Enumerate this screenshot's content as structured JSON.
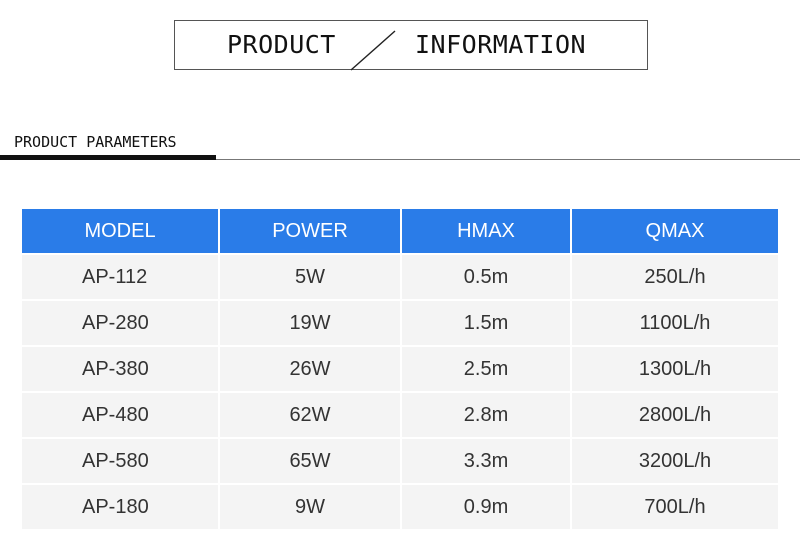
{
  "title": {
    "left": "PRODUCT",
    "right": "INFORMATION"
  },
  "section": {
    "heading": "PRODUCT PARAMETERS"
  },
  "table": {
    "headers": [
      "MODEL",
      "POWER",
      "HMAX",
      "QMAX"
    ],
    "rows": [
      [
        "AP-112",
        "5W",
        "0.5m",
        "250L/h"
      ],
      [
        "AP-280",
        "19W",
        "1.5m",
        "1100L/h"
      ],
      [
        "AP-380",
        "26W",
        "2.5m",
        "1300L/h"
      ],
      [
        "AP-480",
        "62W",
        "2.8m",
        "2800L/h"
      ],
      [
        "AP-580",
        "65W",
        "3.3m",
        "3200L/h"
      ],
      [
        "AP-180",
        "9W",
        "0.9m",
        "700L/h"
      ]
    ]
  },
  "colors": {
    "header_background": "#2a7ce8",
    "row_background": "#f4f4f4",
    "text": "#333333"
  }
}
